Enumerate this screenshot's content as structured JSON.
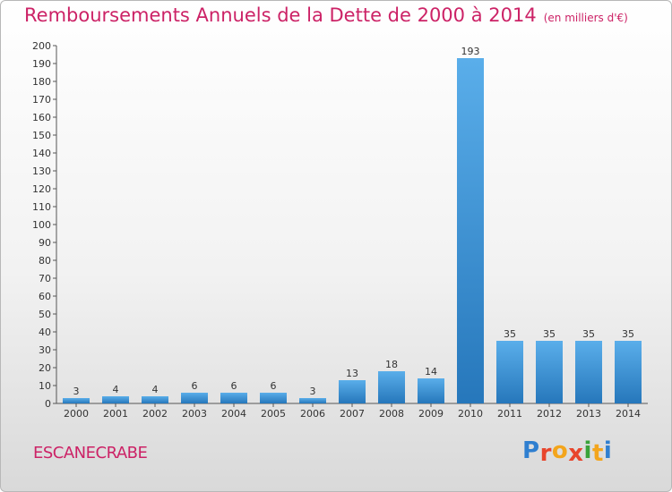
{
  "header": {
    "title": "Remboursements Annuels de la Dette de 2000 à 2014",
    "unit": "(en milliers d'€)"
  },
  "footer": {
    "commune": "ESCANECRABE",
    "logo": "Proxiti"
  },
  "colors": {
    "title": "#cc2266",
    "bar_light": "#5aaeea",
    "bar_dark": "#2677bb",
    "logo_letters": [
      "#2f7fd0",
      "#e8452c",
      "#f3a51c",
      "#e8452c",
      "#3aa33a",
      "#f3a51c",
      "#2f7fd0"
    ]
  },
  "chart_data": {
    "type": "bar",
    "title": "Remboursements Annuels de la Dette de 2000 à 2014",
    "xlabel": "",
    "ylabel": "",
    "categories": [
      "2000",
      "2001",
      "2002",
      "2003",
      "2004",
      "2005",
      "2006",
      "2007",
      "2008",
      "2009",
      "2010",
      "2011",
      "2012",
      "2013",
      "2014"
    ],
    "values": [
      3,
      4,
      4,
      6,
      6,
      6,
      3,
      13,
      18,
      14,
      193,
      35,
      35,
      35,
      35
    ],
    "ylim": [
      0,
      200
    ],
    "yticks": [
      0,
      10,
      20,
      30,
      40,
      50,
      60,
      70,
      80,
      90,
      100,
      110,
      120,
      130,
      140,
      150,
      160,
      170,
      180,
      190,
      200
    ],
    "grid": false,
    "legend": "none"
  }
}
